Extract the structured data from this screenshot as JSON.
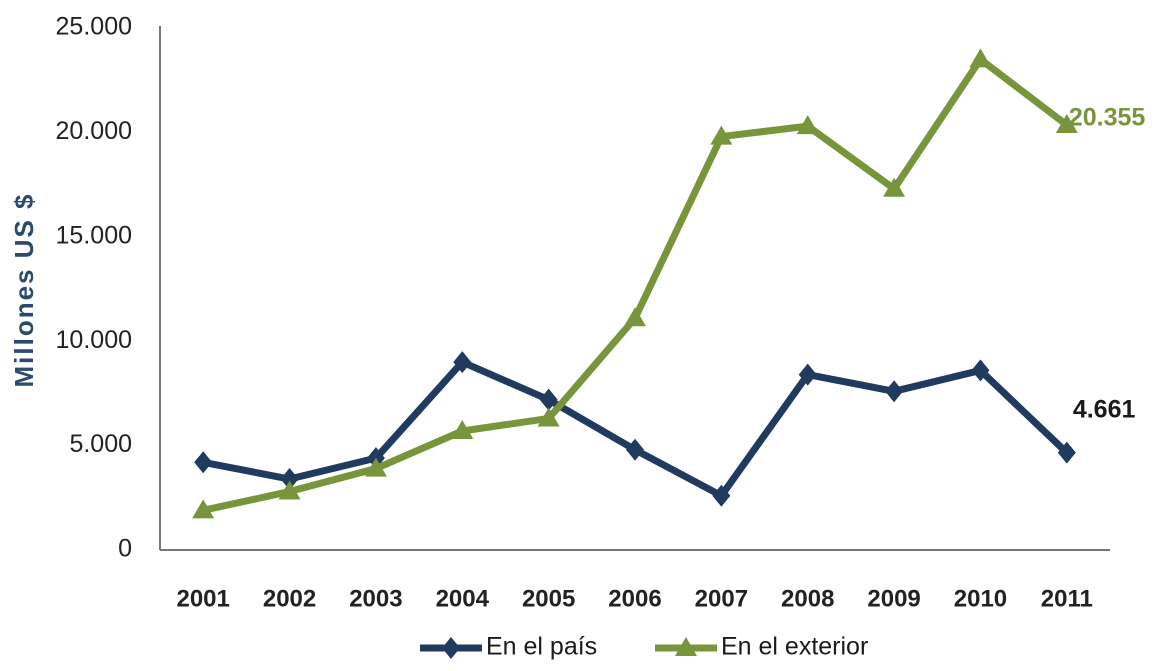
{
  "chart_data": {
    "type": "line",
    "ylabel": "Millones  US $",
    "categories": [
      "2001",
      "2002",
      "2003",
      "2004",
      "2005",
      "2006",
      "2007",
      "2008",
      "2009",
      "2010",
      "2011"
    ],
    "series": [
      {
        "name": "En el país",
        "color": "#203b5e",
        "marker": "diamond",
        "values": [
          4200,
          3400,
          4400,
          9000,
          7200,
          4800,
          2600,
          8400,
          7600,
          8600,
          4661
        ],
        "value_labels": [
          null,
          null,
          null,
          null,
          null,
          null,
          null,
          null,
          null,
          null,
          "4.661"
        ]
      },
      {
        "name": "En el exterior",
        "color": "#78953c",
        "marker": "triangle",
        "values": [
          1900,
          2800,
          3900,
          5700,
          6300,
          11100,
          19800,
          20300,
          17300,
          23500,
          20355
        ],
        "value_labels": [
          null,
          null,
          null,
          null,
          null,
          null,
          null,
          null,
          null,
          null,
          "20.355"
        ]
      }
    ],
    "ylim": [
      0,
      25000
    ],
    "yticks": [
      0,
      {
        "value": 5000,
        "label": "5.000"
      },
      {
        "value": 10000,
        "label": "10.000"
      },
      {
        "value": 15000,
        "label": "15.000"
      },
      {
        "value": 20000,
        "label": "20.000"
      },
      {
        "value": 25000,
        "label": "25.000"
      }
    ],
    "grid": false,
    "legend": "bottom"
  }
}
